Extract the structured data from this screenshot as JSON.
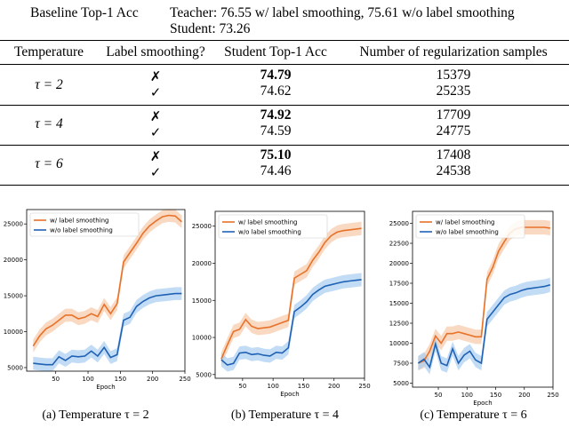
{
  "baseline": {
    "label": "Baseline Top-1 Acc",
    "teacher": "Teacher: 76.55 w/ label smoothing, 75.61 w/o label smoothing",
    "student": "Student: 73.26"
  },
  "table": {
    "headers": [
      "Temperature",
      "Label smoothing?",
      "Student Top-1 Acc",
      "Number of regularization samples"
    ],
    "groups": [
      {
        "temp": "τ = 2",
        "rows": [
          {
            "ls": "✗",
            "acc": "74.79",
            "bold": true,
            "samples": "15379"
          },
          {
            "ls": "✓",
            "acc": "74.62",
            "bold": false,
            "samples": "25235"
          }
        ]
      },
      {
        "temp": "τ = 4",
        "rows": [
          {
            "ls": "✗",
            "acc": "74.92",
            "bold": true,
            "samples": "17709"
          },
          {
            "ls": "✓",
            "acc": "74.59",
            "bold": false,
            "samples": "24775"
          }
        ]
      },
      {
        "temp": "τ = 6",
        "rows": [
          {
            "ls": "✗",
            "acc": "75.10",
            "bold": true,
            "samples": "17408"
          },
          {
            "ls": "✓",
            "acc": "74.46",
            "bold": false,
            "samples": "24538"
          }
        ]
      }
    ]
  },
  "colors": {
    "with_ls": "#e8722a",
    "without_ls": "#1f62b4",
    "with_band": "#f7c9a6",
    "without_band": "#a9cdf2"
  },
  "chart_data": [
    {
      "type": "line",
      "caption": "(a) Temperature τ = 2",
      "xlabel": "Epoch",
      "xlim": [
        5,
        250
      ],
      "ylim": [
        4500,
        27000
      ],
      "xticks": [
        50,
        100,
        150,
        200,
        250
      ],
      "yticks": [
        5000,
        10000,
        15000,
        20000,
        25000
      ],
      "x": [
        15,
        25,
        35,
        45,
        55,
        65,
        75,
        85,
        95,
        105,
        115,
        125,
        135,
        145,
        155,
        165,
        175,
        185,
        195,
        205,
        215,
        225,
        235,
        245
      ],
      "series": [
        {
          "name": "w/ label smoothing",
          "values": [
            8000,
            9400,
            10400,
            10900,
            11600,
            12300,
            12300,
            11800,
            12000,
            12500,
            12100,
            13800,
            12500,
            13900,
            19700,
            21000,
            22300,
            23700,
            24700,
            25400,
            26000,
            26200,
            26100,
            25300
          ]
        },
        {
          "name": "w/o label smoothing",
          "values": [
            5600,
            5500,
            5400,
            5400,
            6500,
            6000,
            6600,
            6500,
            6600,
            7300,
            6600,
            7800,
            6400,
            6800,
            11600,
            12000,
            13500,
            14200,
            14700,
            15000,
            15100,
            15200,
            15300,
            15300
          ]
        }
      ]
    },
    {
      "type": "line",
      "caption": "(b) Temperature τ = 4",
      "xlabel": "Epoch",
      "xlim": [
        5,
        250
      ],
      "ylim": [
        4500,
        27000
      ],
      "xticks": [
        50,
        100,
        150,
        200,
        250
      ],
      "yticks": [
        5000,
        10000,
        15000,
        20000,
        25000
      ],
      "x": [
        15,
        25,
        35,
        45,
        55,
        65,
        75,
        85,
        95,
        105,
        115,
        125,
        135,
        145,
        155,
        165,
        175,
        185,
        195,
        205,
        215,
        225,
        235,
        245
      ],
      "series": [
        {
          "name": "w/ label smoothing",
          "values": [
            7100,
            9000,
            10800,
            11100,
            12400,
            11500,
            11200,
            11300,
            11400,
            11700,
            12000,
            12300,
            18000,
            18500,
            19000,
            20400,
            21500,
            22800,
            23700,
            24200,
            24400,
            24500,
            24600,
            24700
          ]
        },
        {
          "name": "w/o label smoothing",
          "values": [
            7000,
            6300,
            6500,
            7900,
            8000,
            7700,
            7800,
            7600,
            7500,
            8000,
            7900,
            8600,
            13500,
            14100,
            14800,
            15800,
            16400,
            16900,
            17100,
            17300,
            17500,
            17600,
            17700,
            17800
          ]
        }
      ]
    },
    {
      "type": "line",
      "caption": "(c) Temperature τ = 6",
      "xlabel": "Epoch",
      "xlim": [
        5,
        250
      ],
      "ylim": [
        4500,
        26500
      ],
      "xticks": [
        50,
        100,
        150,
        200,
        250
      ],
      "yticks": [
        5000,
        7500,
        10000,
        12500,
        15000,
        17500,
        20000,
        22500,
        25000
      ],
      "x": [
        15,
        25,
        35,
        45,
        55,
        65,
        75,
        85,
        95,
        105,
        115,
        125,
        135,
        145,
        155,
        165,
        175,
        185,
        195,
        205,
        215,
        225,
        235,
        245
      ],
      "series": [
        {
          "name": "w/ label smoothing",
          "values": [
            7500,
            7800,
            9000,
            10900,
            10000,
            11200,
            11200,
            11400,
            11200,
            11000,
            10800,
            10800,
            18000,
            19500,
            21500,
            22700,
            23800,
            24300,
            24500,
            24500,
            24500,
            24500,
            24500,
            24400
          ]
        },
        {
          "name": "w/o label smoothing",
          "values": [
            7500,
            8000,
            7000,
            9900,
            7500,
            7200,
            9300,
            7500,
            8500,
            9000,
            7900,
            7500,
            13000,
            13900,
            14800,
            15700,
            16100,
            16300,
            16600,
            16800,
            16900,
            17000,
            17100,
            17300
          ]
        }
      ]
    }
  ]
}
